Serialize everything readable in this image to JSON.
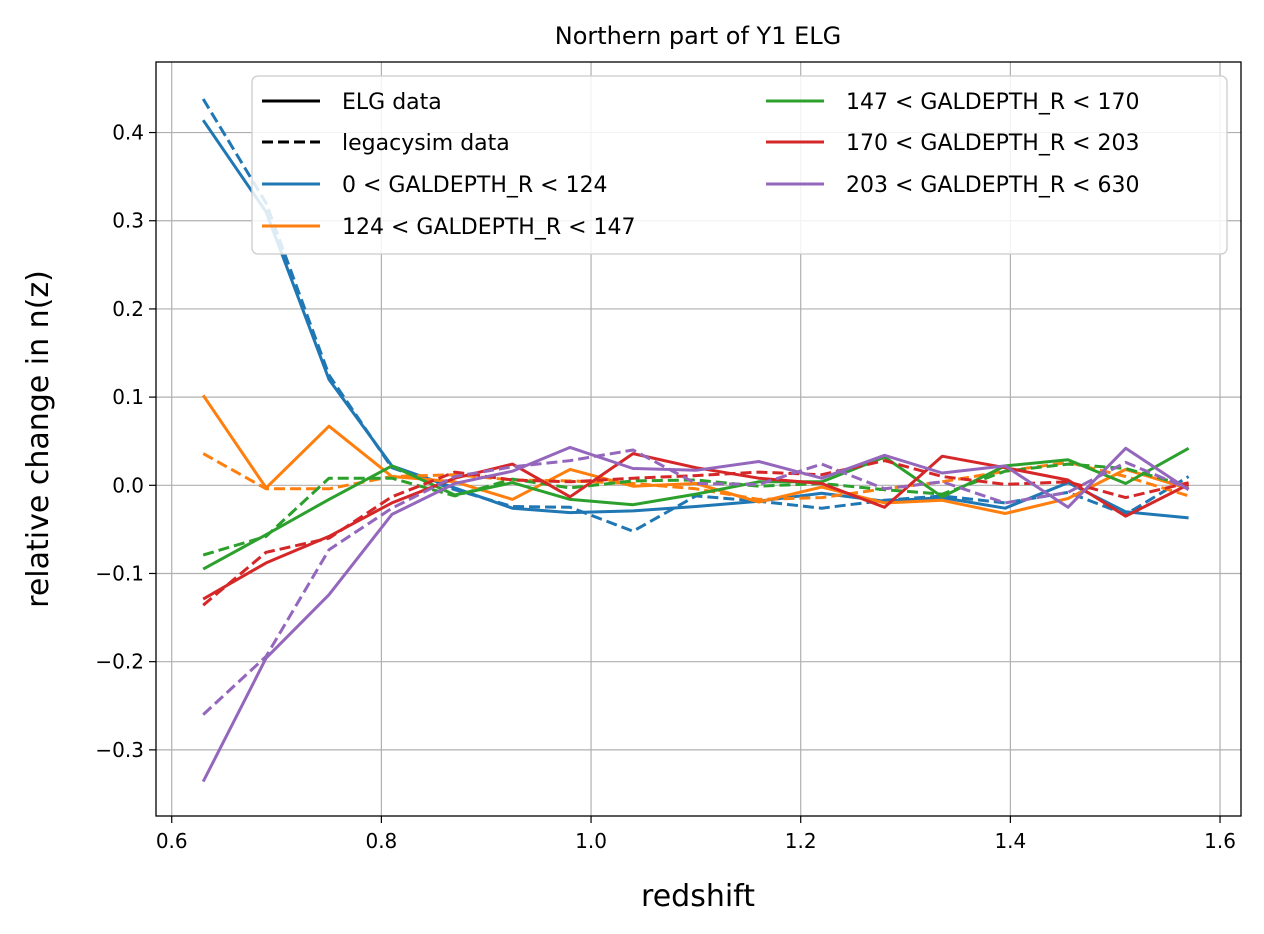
{
  "chart_data": {
    "type": "line",
    "title": "Northern part of Y1 ELG",
    "xlabel": "redshift",
    "ylabel": "relative change in n(z)",
    "xlim": [
      0.585,
      1.62
    ],
    "ylim": [
      -0.375,
      0.48
    ],
    "grid": true,
    "legend_placement": "top-right",
    "x_ticks": [
      0.6,
      0.8,
      1.0,
      1.2,
      1.4,
      1.6
    ],
    "x_tick_labels": [
      "0.6",
      "0.8",
      "1.0",
      "1.2",
      "1.4",
      "1.6"
    ],
    "y_ticks": [
      -0.3,
      -0.2,
      -0.1,
      0.0,
      0.1,
      0.2,
      0.3,
      0.4
    ],
    "y_tick_labels": [
      "−0.3",
      "−0.2",
      "−0.1",
      "0.0",
      "0.1",
      "0.2",
      "0.3",
      "0.4"
    ],
    "x": [
      0.63,
      0.69,
      0.75,
      0.81,
      0.87,
      0.925,
      0.98,
      1.04,
      1.1,
      1.16,
      1.22,
      1.28,
      1.335,
      1.395,
      1.455,
      1.51,
      1.57
    ],
    "style_legend": [
      {
        "name": "ELG data",
        "dash": "solid"
      },
      {
        "name": "legacysim data",
        "dash": "dashed"
      }
    ],
    "series": [
      {
        "name": "0 < GALDEPTH_R < 124",
        "color": "#1f77b4",
        "solid": [
          0.414,
          0.31,
          0.12,
          0.022,
          -0.003,
          -0.026,
          -0.031,
          -0.029,
          -0.024,
          -0.018,
          -0.009,
          -0.018,
          -0.014,
          -0.026,
          0.003,
          -0.03,
          -0.037
        ],
        "dashed": [
          0.438,
          0.32,
          0.125,
          0.02,
          -0.005,
          -0.024,
          -0.025,
          -0.052,
          -0.012,
          -0.018,
          -0.026,
          -0.017,
          -0.012,
          -0.02,
          -0.008,
          -0.033,
          0.01
        ]
      },
      {
        "name": "124 < GALDEPTH_R < 147",
        "color": "#ff7f0e",
        "solid": [
          0.102,
          -0.003,
          0.067,
          0.01,
          0.004,
          -0.016,
          0.018,
          -0.001,
          0.002,
          -0.019,
          -0.002,
          -0.02,
          -0.017,
          -0.032,
          -0.015,
          0.018,
          -0.004
        ],
        "dashed": [
          0.036,
          -0.004,
          -0.004,
          0.01,
          0.012,
          0.006,
          0.005,
          0.002,
          -0.004,
          -0.016,
          -0.014,
          -0.004,
          0.004,
          0.016,
          0.026,
          0.01,
          -0.012
        ]
      },
      {
        "name": "147 < GALDEPTH_R < 170",
        "color": "#2ca02c",
        "solid": [
          -0.095,
          -0.056,
          -0.016,
          0.022,
          -0.011,
          0.003,
          -0.016,
          -0.022,
          -0.01,
          0.004,
          0.004,
          0.032,
          -0.013,
          0.022,
          0.029,
          0.002,
          0.042
        ],
        "dashed": [
          -0.079,
          -0.058,
          0.008,
          0.008,
          -0.012,
          0.007,
          -0.003,
          0.005,
          0.006,
          -0.001,
          0.002,
          -0.005,
          -0.01,
          0.016,
          0.024,
          0.019,
          -0.001
        ]
      },
      {
        "name": "170 < GALDEPTH_R < 203",
        "color": "#d62728",
        "solid": [
          -0.129,
          -0.088,
          -0.058,
          -0.02,
          0.008,
          0.024,
          -0.013,
          0.036,
          0.02,
          0.008,
          0.002,
          -0.025,
          0.033,
          0.02,
          0.006,
          -0.035,
          0.001
        ],
        "dashed": [
          -0.136,
          -0.076,
          -0.06,
          -0.013,
          0.015,
          0.006,
          0.004,
          0.008,
          0.011,
          0.015,
          0.012,
          0.028,
          0.01,
          0.001,
          0.004,
          -0.014,
          0.003
        ]
      },
      {
        "name": "203 < GALDEPTH_R < 630",
        "color": "#9467bd",
        "solid": [
          -0.336,
          -0.196,
          -0.124,
          -0.033,
          0.002,
          0.016,
          0.043,
          0.019,
          0.017,
          0.027,
          0.008,
          0.034,
          0.014,
          0.022,
          -0.025,
          0.042,
          -0.005
        ],
        "dashed": [
          -0.26,
          -0.194,
          -0.073,
          -0.026,
          0.01,
          0.021,
          0.028,
          0.04,
          0.002,
          0.001,
          0.024,
          -0.004,
          0.004,
          -0.02,
          -0.008,
          0.026,
          -0.004
        ]
      }
    ]
  }
}
